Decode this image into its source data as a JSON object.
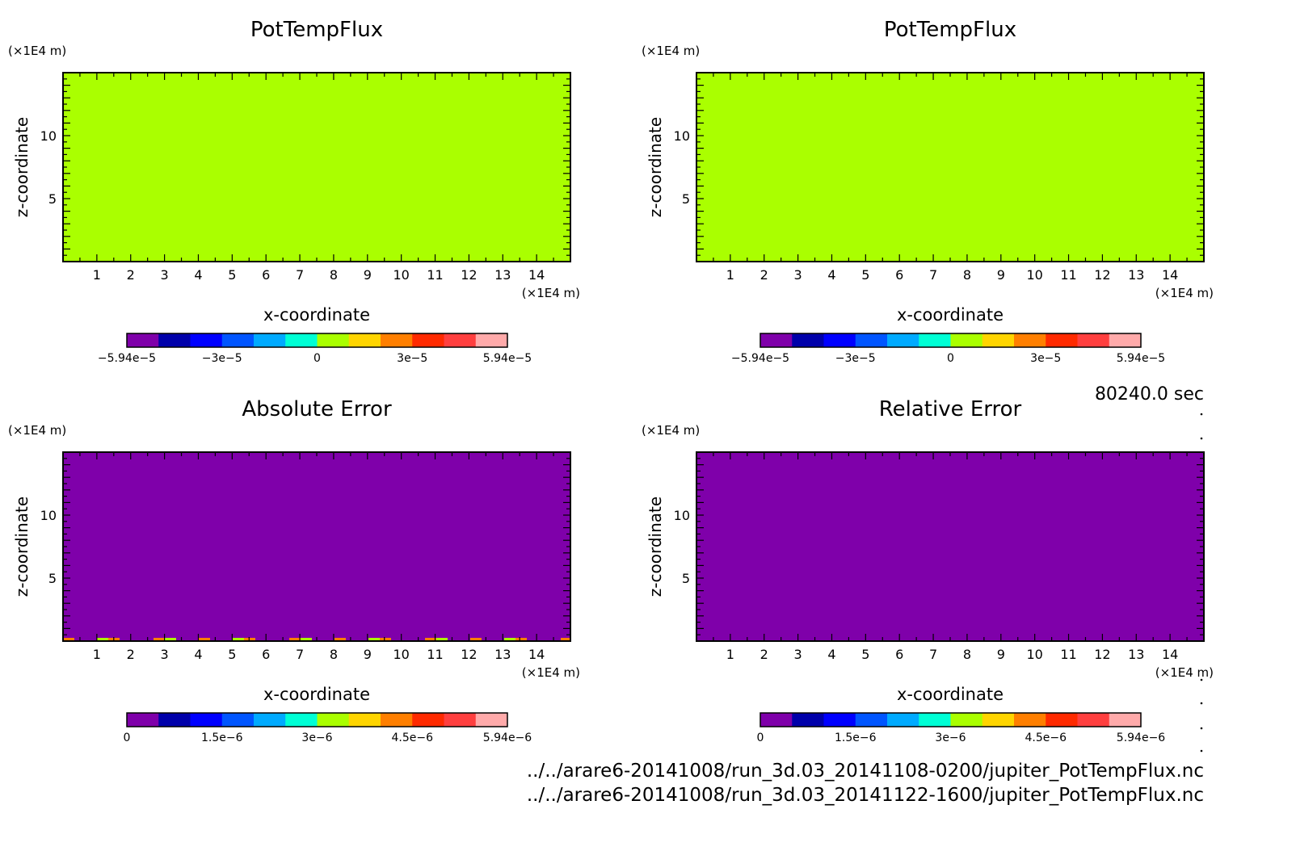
{
  "chart_data": [
    {
      "type": "heatmap",
      "title": "PotTempFlux",
      "xlabel": "x-coordinate",
      "ylabel": "z-coordinate",
      "x_unit": "(×1E4 m)",
      "y_unit": "(×1E4 m)",
      "xlim": [
        0,
        15
      ],
      "ylim": [
        0,
        15
      ],
      "x_ticks": [
        1,
        2,
        3,
        4,
        5,
        6,
        7,
        8,
        9,
        10,
        11,
        12,
        13,
        14
      ],
      "y_ticks": [
        5,
        10
      ],
      "fill_color": "#aaff00",
      "colorbar": {
        "colors": [
          "#7f00aa",
          "#0000aa",
          "#0000ff",
          "#0055ff",
          "#00aaff",
          "#00ffd5",
          "#aaff00",
          "#ffd500",
          "#ff7f00",
          "#ff2a00",
          "#ff3f3f",
          "#ffaaaa"
        ],
        "tick_labels": [
          "−5.94e−5",
          "−3e−5",
          "0",
          "3e−5",
          "5.94e−5"
        ]
      }
    },
    {
      "type": "heatmap",
      "title": "PotTempFlux",
      "xlabel": "x-coordinate",
      "ylabel": "z-coordinate",
      "x_unit": "(×1E4 m)",
      "y_unit": "(×1E4 m)",
      "xlim": [
        0,
        15
      ],
      "ylim": [
        0,
        15
      ],
      "x_ticks": [
        1,
        2,
        3,
        4,
        5,
        6,
        7,
        8,
        9,
        10,
        11,
        12,
        13,
        14
      ],
      "y_ticks": [
        5,
        10
      ],
      "fill_color": "#aaff00",
      "colorbar": {
        "colors": [
          "#7f00aa",
          "#0000aa",
          "#0000ff",
          "#0055ff",
          "#00aaff",
          "#00ffd5",
          "#aaff00",
          "#ffd500",
          "#ff7f00",
          "#ff2a00",
          "#ff3f3f",
          "#ffaaaa"
        ],
        "tick_labels": [
          "−5.94e−5",
          "−3e−5",
          "0",
          "3e−5",
          "5.94e−5"
        ]
      }
    },
    {
      "type": "heatmap",
      "title": "Absolute Error",
      "xlabel": "x-coordinate",
      "ylabel": "z-coordinate",
      "x_unit": "(×1E4 m)",
      "y_unit": "(×1E4 m)",
      "xlim": [
        0,
        15
      ],
      "ylim": [
        0,
        15
      ],
      "x_ticks": [
        1,
        2,
        3,
        4,
        5,
        6,
        7,
        8,
        9,
        10,
        11,
        12,
        13,
        14
      ],
      "y_ticks": [
        5,
        10
      ],
      "fill_color": "#7f00aa",
      "bottom_noise": true,
      "colorbar": {
        "colors": [
          "#7f00aa",
          "#0000aa",
          "#0000ff",
          "#0055ff",
          "#00aaff",
          "#00ffd5",
          "#aaff00",
          "#ffd500",
          "#ff7f00",
          "#ff2a00",
          "#ff3f3f",
          "#ffaaaa"
        ],
        "tick_labels": [
          "0",
          "1.5e−6",
          "3e−6",
          "4.5e−6",
          "5.94e−6"
        ]
      }
    },
    {
      "type": "heatmap",
      "title": "Relative Error",
      "xlabel": "x-coordinate",
      "ylabel": "z-coordinate",
      "x_unit": "(×1E4 m)",
      "y_unit": "(×1E4 m)",
      "xlim": [
        0,
        15
      ],
      "ylim": [
        0,
        15
      ],
      "x_ticks": [
        1,
        2,
        3,
        4,
        5,
        6,
        7,
        8,
        9,
        10,
        11,
        12,
        13,
        14
      ],
      "y_ticks": [
        5,
        10
      ],
      "fill_color": "#7f00aa",
      "colorbar": {
        "colors": [
          "#7f00aa",
          "#0000aa",
          "#0000ff",
          "#0055ff",
          "#00aaff",
          "#00ffd5",
          "#aaff00",
          "#ffd500",
          "#ff7f00",
          "#ff2a00",
          "#ff3f3f",
          "#ffaaaa"
        ],
        "tick_labels": [
          "0",
          "1.5e−6",
          "3e−6",
          "4.5e−6",
          "5.94e−6"
        ]
      }
    }
  ],
  "time_label": "80240.0 sec",
  "files": [
    "../../arare6-20141008/run_3d.03_20141108-0200/jupiter_PotTempFlux.nc",
    "../../arare6-20141008/run_3d.03_20141122-1600/jupiter_PotTempFlux.nc"
  ]
}
